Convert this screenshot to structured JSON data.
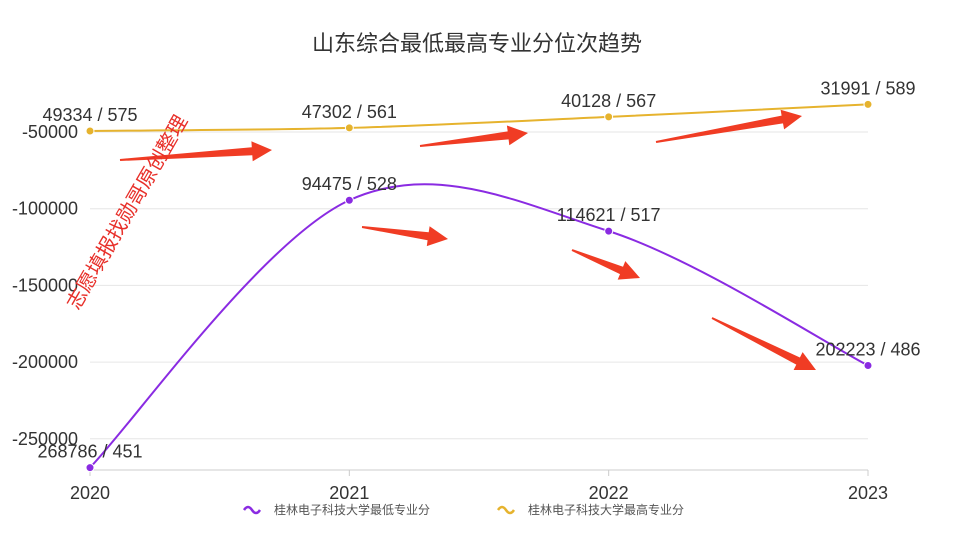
{
  "chart_data": {
    "type": "line",
    "title": "山东综合最低最高专业分位次趋势",
    "categories": [
      "2020",
      "2021",
      "2022",
      "2023"
    ],
    "ylim": [
      -270000,
      -30000
    ],
    "yticks": [
      -50000,
      -100000,
      -150000,
      -200000,
      -250000
    ],
    "ytick_labels": [
      "-50000",
      "-100000",
      "-150000",
      "-200000",
      "-250000"
    ],
    "grid": true,
    "legend_position": "bottom",
    "series": [
      {
        "name": "桂林电子科技大学最低专业分",
        "color": "#8a2be2",
        "values": [
          -268786,
          -94475,
          -114621,
          -202223
        ],
        "labels": [
          "268786 / 451",
          "94475 / 528",
          "114621 / 517",
          "202223 / 486"
        ]
      },
      {
        "name": "桂林电子科技大学最高专业分",
        "color": "#e6b32e",
        "values": [
          -49334,
          -47302,
          -40128,
          -31991
        ],
        "labels": [
          "49334 / 575",
          "47302 / 561",
          "40128 / 567",
          "31991 / 589"
        ]
      }
    ],
    "annotations": {
      "watermark": "志愿填报找勋哥原创整理",
      "arrow_color": "#f03c24"
    }
  }
}
